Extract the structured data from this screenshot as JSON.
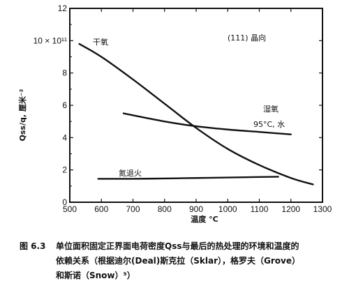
{
  "chart_data": {
    "type": "line",
    "xlabel": "温度 °C",
    "ylabel": "Qss/q, 厘米⁻²",
    "xlim": [
      500,
      1300
    ],
    "ylim": [
      0,
      12
    ],
    "x_ticks": [
      "500",
      "600",
      "700",
      "800",
      "900",
      "1000",
      "1100",
      "1200",
      "1300"
    ],
    "y_ticks": [
      {
        "value": 0,
        "label": "0"
      },
      {
        "value": 2,
        "label": "2"
      },
      {
        "value": 4,
        "label": "4"
      },
      {
        "value": 6,
        "label": "6"
      },
      {
        "value": 8,
        "label": "8"
      },
      {
        "value": 10,
        "label": "10 × 10¹¹"
      },
      {
        "value": 12,
        "label": "12"
      }
    ],
    "annotations": {
      "orientation": "(111)  晶向",
      "dry_oxygen": "干氧",
      "wet_oxygen": "湿氧",
      "wet_condition": "95°C, 水",
      "nitrogen_anneal": "氮退火"
    },
    "series": [
      {
        "name": "干氧",
        "x": [
          530,
          600,
          700,
          800,
          900,
          1000,
          1100,
          1200,
          1270
        ],
        "y": [
          9.8,
          9.0,
          7.6,
          6.1,
          4.6,
          3.3,
          2.3,
          1.5,
          1.1
        ]
      },
      {
        "name": "湿氧",
        "x": [
          670,
          800,
          900,
          1000,
          1100,
          1200
        ],
        "y": [
          5.5,
          5.0,
          4.7,
          4.5,
          4.35,
          4.2
        ]
      },
      {
        "name": "氮退火",
        "x": [
          590,
          700,
          800,
          900,
          1000,
          1100,
          1160
        ],
        "y": [
          1.45,
          1.45,
          1.47,
          1.5,
          1.53,
          1.56,
          1.58
        ]
      }
    ]
  },
  "caption": {
    "figure_number": "图 6.3",
    "line1": "单位面积固定正界面电荷密度Qss与最后的热处理的环境和温度的",
    "line2": "依赖关系（根据迪尔(Deal)斯克拉（Sklar），格罗夫（Grove）",
    "line3": "和斯诺（Snow）⁵）"
  }
}
